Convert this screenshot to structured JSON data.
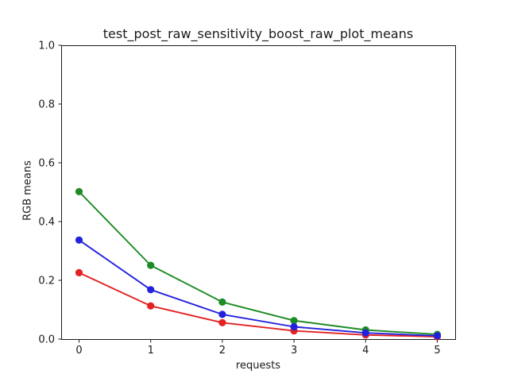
{
  "page": {
    "background": "#ffffff"
  },
  "chart_data": {
    "type": "line",
    "title": "test_post_raw_sensitivity_boost_raw_plot_means",
    "xlabel": "requests",
    "ylabel": "RGB means",
    "xlim": [
      -0.25,
      5.25
    ],
    "ylim": [
      0.0,
      1.0
    ],
    "grid": false,
    "legend": "none",
    "axis_color": "#1a1a1a",
    "x_ticks": [
      0,
      1,
      2,
      3,
      4,
      5
    ],
    "x_tick_labels": [
      "0",
      "1",
      "2",
      "3",
      "4",
      "5"
    ],
    "y_ticks": [
      0.0,
      0.2,
      0.4,
      0.6,
      0.8,
      1.0
    ],
    "y_tick_labels": [
      "0.0",
      "0.2",
      "0.4",
      "0.6",
      "0.8",
      "1.0"
    ],
    "x": [
      0,
      1,
      2,
      3,
      4,
      5
    ],
    "series": [
      {
        "name": "red",
        "color": "#e32222",
        "marker": "circle",
        "values": [
          0.226,
          0.113,
          0.056,
          0.028,
          0.014,
          0.008
        ]
      },
      {
        "name": "green",
        "color": "#1e8b24",
        "marker": "circle",
        "values": [
          0.502,
          0.251,
          0.126,
          0.063,
          0.031,
          0.016
        ]
      },
      {
        "name": "blue",
        "color": "#2222dd",
        "marker": "circle",
        "values": [
          0.337,
          0.168,
          0.084,
          0.042,
          0.021,
          0.011
        ]
      }
    ]
  }
}
